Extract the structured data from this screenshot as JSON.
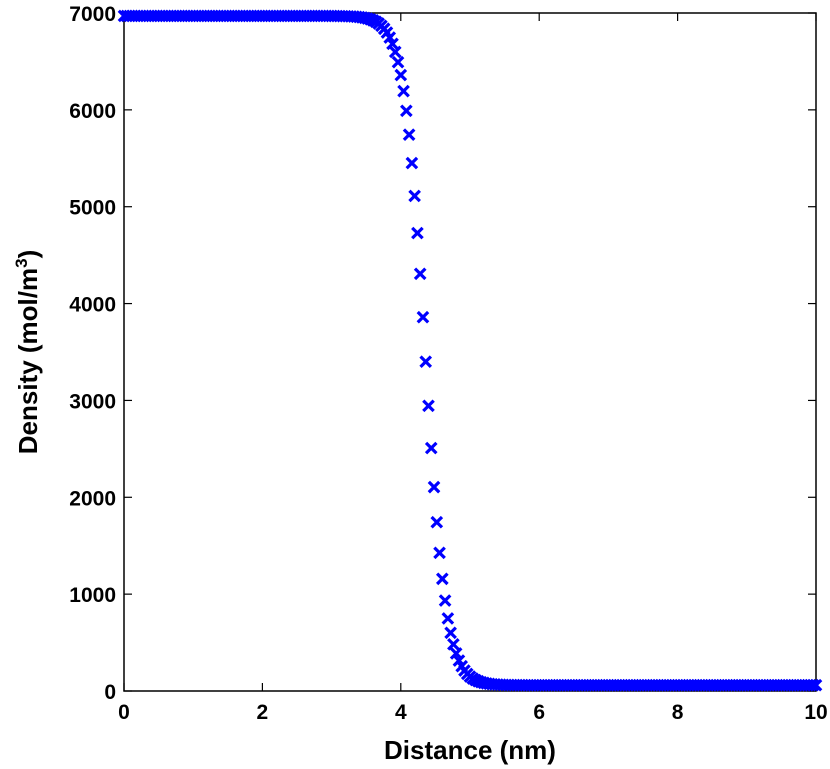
{
  "chart_data": {
    "type": "scatter",
    "title": "",
    "xlabel": "Distance (nm)",
    "ylabel": "Density (mol/m",
    "ylabel_superscript": "3",
    "ylabel_suffix": ")",
    "xlim": [
      0,
      10
    ],
    "ylim": [
      0,
      7000
    ],
    "xticks": [
      0,
      2,
      4,
      6,
      8,
      10
    ],
    "yticks": [
      0,
      1000,
      2000,
      3000,
      4000,
      5000,
      6000,
      7000
    ],
    "grid": false,
    "marker": "x",
    "color": "#0000ff",
    "series": [
      {
        "description": "Smooth tanh-like density profile: flat near 6970 from x=0 to ~3, steep drop centered near x≈4.35, flat near 60 beyond ~5.3 to x=10. Sampled every 0.04 nm.",
        "profile": {
          "x_start": 0,
          "x_end": 10,
          "step": 0.04,
          "high": 6970,
          "low": 60,
          "center": 4.35,
          "width": 0.3
        }
      }
    ]
  }
}
